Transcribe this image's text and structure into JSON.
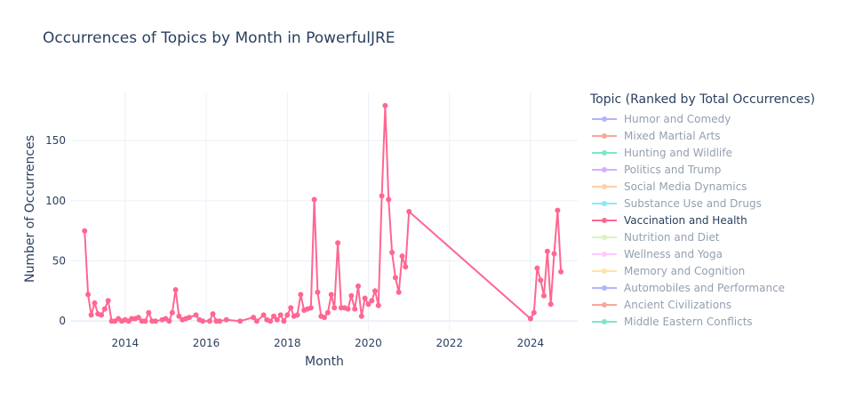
{
  "chart_data": {
    "type": "line",
    "title": "Occurrences of Topics by Month in PowerfulJRE",
    "xlabel": "Month",
    "ylabel": "Number of Occurrences",
    "xlim": [
      "2012-09-01",
      "2025-03-01"
    ],
    "ylim": [
      -8,
      190
    ],
    "x_ticks": [
      "2014",
      "2016",
      "2018",
      "2020",
      "2022",
      "2024"
    ],
    "y_ticks": [
      0,
      50,
      100,
      150
    ],
    "grid": true,
    "legend_title": "Topic (Ranked by Total Occurrences)",
    "legend_position": "right",
    "legend": [
      {
        "name": "Humor and Comedy",
        "color": "#636efa",
        "visible": false
      },
      {
        "name": "Mixed Martial Arts",
        "color": "#ef553b",
        "visible": false
      },
      {
        "name": "Hunting and Wildlife",
        "color": "#00cc96",
        "visible": false
      },
      {
        "name": "Politics and Trump",
        "color": "#ab63fa",
        "visible": false
      },
      {
        "name": "Social Media Dynamics",
        "color": "#ffa15a",
        "visible": false
      },
      {
        "name": "Substance Use and Drugs",
        "color": "#19d3f3",
        "visible": false
      },
      {
        "name": "Vaccination and Health",
        "color": "#ff6692",
        "visible": true
      },
      {
        "name": "Nutrition and Diet",
        "color": "#b6e880",
        "visible": false
      },
      {
        "name": "Wellness and Yoga",
        "color": "#ff97ff",
        "visible": false
      },
      {
        "name": "Memory and Cognition",
        "color": "#fecb52",
        "visible": false
      },
      {
        "name": "Automobiles and Performance",
        "color": "#636efa",
        "visible": false
      },
      {
        "name": "Ancient Civilizations",
        "color": "#ef553b",
        "visible": false
      },
      {
        "name": "Middle Eastern Conflicts",
        "color": "#00cc96",
        "visible": false
      }
    ],
    "series": [
      {
        "name": "Vaccination and Health",
        "color": "#ff6692",
        "points": [
          [
            "2013-01-01",
            75
          ],
          [
            "2013-02-01",
            22
          ],
          [
            "2013-03-01",
            5
          ],
          [
            "2013-04-01",
            15
          ],
          [
            "2013-05-01",
            6
          ],
          [
            "2013-06-01",
            5
          ],
          [
            "2013-07-01",
            10
          ],
          [
            "2013-08-01",
            17
          ],
          [
            "2013-09-01",
            0
          ],
          [
            "2013-10-01",
            0
          ],
          [
            "2013-11-01",
            2
          ],
          [
            "2013-12-01",
            0
          ],
          [
            "2014-01-01",
            1
          ],
          [
            "2014-02-01",
            0
          ],
          [
            "2014-03-01",
            2
          ],
          [
            "2014-04-01",
            2
          ],
          [
            "2014-05-01",
            3
          ],
          [
            "2014-06-01",
            0
          ],
          [
            "2014-07-01",
            0
          ],
          [
            "2014-08-01",
            7
          ],
          [
            "2014-09-01",
            0
          ],
          [
            "2014-10-01",
            0
          ],
          [
            "2014-12-01",
            1
          ],
          [
            "2015-01-01",
            2
          ],
          [
            "2015-02-01",
            0
          ],
          [
            "2015-03-01",
            7
          ],
          [
            "2015-04-01",
            26
          ],
          [
            "2015-05-01",
            4
          ],
          [
            "2015-06-01",
            1
          ],
          [
            "2015-07-01",
            2
          ],
          [
            "2015-08-01",
            3
          ],
          [
            "2015-10-01",
            5
          ],
          [
            "2015-11-01",
            1
          ],
          [
            "2015-12-01",
            0
          ],
          [
            "2016-02-01",
            0
          ],
          [
            "2016-03-01",
            6
          ],
          [
            "2016-04-01",
            0
          ],
          [
            "2016-05-01",
            0
          ],
          [
            "2016-07-01",
            1
          ],
          [
            "2016-11-01",
            0
          ],
          [
            "2017-03-01",
            3
          ],
          [
            "2017-04-01",
            0
          ],
          [
            "2017-06-01",
            5
          ],
          [
            "2017-07-01",
            1
          ],
          [
            "2017-08-01",
            0
          ],
          [
            "2017-09-01",
            4
          ],
          [
            "2017-10-01",
            1
          ],
          [
            "2017-11-01",
            5
          ],
          [
            "2017-12-01",
            0
          ],
          [
            "2018-01-01",
            5
          ],
          [
            "2018-02-01",
            11
          ],
          [
            "2018-03-01",
            4
          ],
          [
            "2018-04-01",
            5
          ],
          [
            "2018-05-01",
            22
          ],
          [
            "2018-06-01",
            9
          ],
          [
            "2018-07-01",
            10
          ],
          [
            "2018-08-01",
            11
          ],
          [
            "2018-09-01",
            101
          ],
          [
            "2018-10-01",
            24
          ],
          [
            "2018-11-01",
            4
          ],
          [
            "2018-12-01",
            3
          ],
          [
            "2019-01-01",
            7
          ],
          [
            "2019-02-01",
            22
          ],
          [
            "2019-03-01",
            11
          ],
          [
            "2019-04-01",
            65
          ],
          [
            "2019-05-01",
            11
          ],
          [
            "2019-06-01",
            11
          ],
          [
            "2019-07-01",
            10
          ],
          [
            "2019-08-01",
            21
          ],
          [
            "2019-09-01",
            10
          ],
          [
            "2019-10-01",
            29
          ],
          [
            "2019-11-01",
            4
          ],
          [
            "2019-12-01",
            19
          ],
          [
            "2020-01-01",
            14
          ],
          [
            "2020-02-01",
            17
          ],
          [
            "2020-03-01",
            25
          ],
          [
            "2020-04-01",
            13
          ],
          [
            "2020-05-01",
            104
          ],
          [
            "2020-06-01",
            179
          ],
          [
            "2020-07-01",
            101
          ],
          [
            "2020-08-01",
            57
          ],
          [
            "2020-09-01",
            36
          ],
          [
            "2020-10-01",
            24
          ],
          [
            "2020-11-01",
            54
          ],
          [
            "2020-12-01",
            45
          ],
          [
            "2021-01-01",
            91
          ],
          [
            "2024-01-01",
            2
          ],
          [
            "2024-02-01",
            7
          ],
          [
            "2024-03-01",
            44
          ],
          [
            "2024-04-01",
            34
          ],
          [
            "2024-05-01",
            21
          ],
          [
            "2024-06-01",
            58
          ],
          [
            "2024-07-01",
            14
          ],
          [
            "2024-08-01",
            56
          ],
          [
            "2024-09-01",
            92
          ],
          [
            "2024-10-01",
            41
          ]
        ]
      }
    ]
  }
}
